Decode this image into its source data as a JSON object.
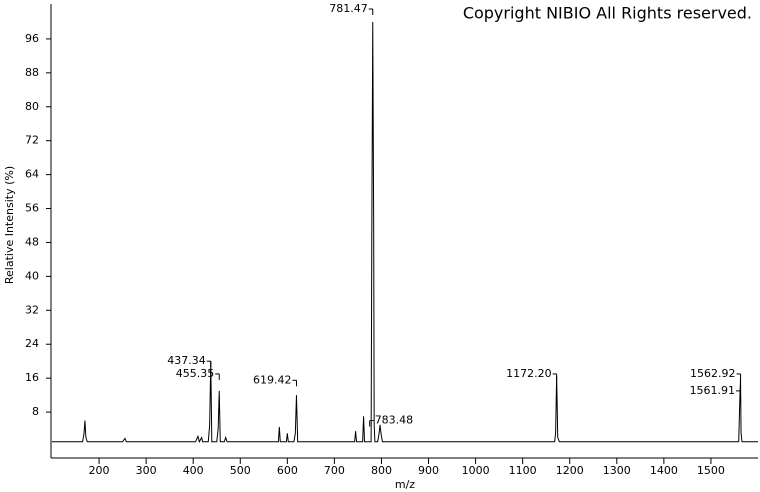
{
  "chart_data": {
    "type": "line",
    "title": "Copyright NIBIO All Rights reserved.",
    "x_label": "m/z",
    "y_label": "Relative Intensity (%)",
    "xlim": [
      100,
      1600
    ],
    "ylim": [
      0,
      104
    ],
    "xticks": [
      200,
      300,
      400,
      500,
      600,
      700,
      800,
      900,
      1000,
      1100,
      1200,
      1300,
      1400,
      1500
    ],
    "yticks": [
      8,
      16,
      24,
      32,
      40,
      48,
      56,
      64,
      72,
      80,
      88,
      96
    ],
    "grid": false,
    "series": [
      {
        "color": "#000000",
        "x": [
          100,
          120,
          165,
          168,
          170,
          172,
          175,
          250,
          255,
          258,
          300,
          405,
          410,
          413,
          418,
          420,
          423,
          432,
          435,
          437.34,
          439.5,
          450,
          453,
          455.35,
          457.5,
          466,
          469,
          472,
          578,
          581,
          583,
          585,
          595,
          598,
          600,
          602,
          614,
          617,
          619.42,
          622,
          740,
          743,
          745,
          747,
          757,
          760,
          762,
          764,
          776,
          778,
          779.5,
          780.5,
          781.47,
          782.5,
          783.48,
          784.5,
          786,
          792,
          795,
          797,
          799,
          802,
          1165,
          1168,
          1170,
          1172.2,
          1174.5,
          1178,
          1556,
          1559,
          1561.91,
          1562.92,
          1564,
          1566,
          1600
        ],
        "values": [
          1,
          1,
          1,
          3,
          6,
          2,
          1,
          1,
          1.8,
          1,
          1,
          1,
          2.3,
          1,
          2,
          1,
          1,
          1,
          5,
          20,
          1,
          1,
          4,
          13,
          1,
          1,
          2,
          1,
          1,
          1,
          4.5,
          1,
          1,
          1,
          3,
          1,
          1,
          3,
          12,
          1,
          1,
          1,
          3.5,
          1,
          1,
          1,
          7,
          1,
          1,
          1,
          51,
          75,
          100,
          75,
          51,
          5,
          1,
          1,
          3,
          5,
          3,
          1,
          1,
          1,
          3,
          16.5,
          2,
          1,
          1,
          1,
          13,
          16,
          3,
          1,
          1
        ]
      }
    ],
    "annotations": [
      {
        "text": "437.34",
        "x": 437.34,
        "y": 20
      },
      {
        "text": "455.35",
        "x": 455.35,
        "y": 17
      },
      {
        "text": "619.42",
        "x": 619.42,
        "y": 15.5
      },
      {
        "text": "781.47",
        "x": 781.47,
        "y": 104
      },
      {
        "text": "783.48",
        "x": 783.48,
        "y": 6
      },
      {
        "text": "1172.20",
        "x": 1172.2,
        "y": 17
      },
      {
        "text": "1562.92",
        "x": 1562.92,
        "y": 17
      },
      {
        "text": "1561.91",
        "x": 1561.91,
        "y": 13
      }
    ]
  }
}
